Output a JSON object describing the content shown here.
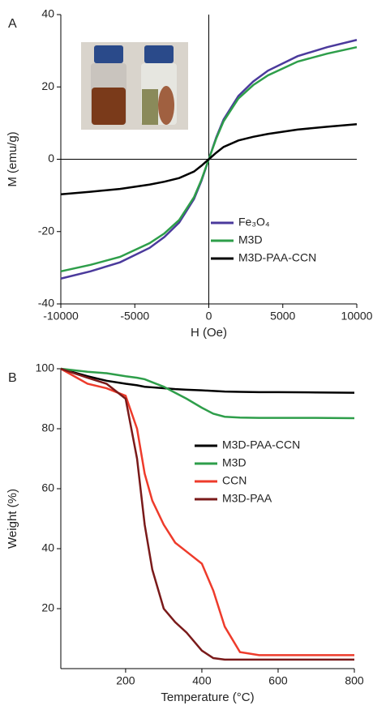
{
  "chart_data": [
    {
      "type": "line",
      "label": "A",
      "xlabel": "H (Oe)",
      "ylabel": "M (emu/g)",
      "x": [
        -10000,
        -8000,
        -6000,
        -4000,
        -3000,
        -2000,
        -1000,
        -500,
        0,
        500,
        1000,
        2000,
        3000,
        4000,
        6000,
        8000,
        10000
      ],
      "series": [
        {
          "name": "Fe₃O₄",
          "color": "#4b3a9c",
          "values": [
            -33,
            -31,
            -28.5,
            -24.5,
            -21.5,
            -17.5,
            -11,
            -6,
            0,
            6,
            11,
            17.5,
            21.5,
            24.5,
            28.5,
            31,
            33
          ]
        },
        {
          "name": "M3D",
          "color": "#2e9e4a",
          "values": [
            -31,
            -29.2,
            -27,
            -23.2,
            -20.5,
            -16.8,
            -10.5,
            -5.7,
            0,
            5.7,
            10.5,
            16.8,
            20.5,
            23.2,
            27,
            29.2,
            31
          ]
        },
        {
          "name": "M3D-PAA-CCN",
          "color": "#000000",
          "values": [
            -9.7,
            -9,
            -8.2,
            -7,
            -6.2,
            -5.2,
            -3.4,
            -1.8,
            0,
            1.8,
            3.4,
            5.2,
            6.2,
            7,
            8.2,
            9,
            9.7
          ]
        }
      ],
      "xlim": [
        -10000,
        10000
      ],
      "xticks": [
        -10000,
        -5000,
        0,
        5000,
        10000
      ],
      "ylim": [
        -40,
        40
      ],
      "yticks": [
        -40,
        -20,
        0,
        20,
        40
      ],
      "zero_lines": true,
      "legend": "lower-right"
    },
    {
      "type": "line",
      "label": "B",
      "xlabel": "Temperature (°C)",
      "ylabel": "Weight (%)",
      "x": [
        30,
        100,
        150,
        200,
        230,
        250,
        270,
        300,
        330,
        360,
        400,
        430,
        460,
        500,
        550,
        600,
        700,
        800
      ],
      "series": [
        {
          "name": "M3D-PAA-CCN",
          "color": "#000000",
          "values": [
            100,
            97.5,
            96,
            95,
            94.5,
            94,
            93.8,
            93.5,
            93.2,
            93,
            92.8,
            92.6,
            92.4,
            92.3,
            92.2,
            92.2,
            92.1,
            92
          ]
        },
        {
          "name": "M3D",
          "color": "#2e9e4a",
          "values": [
            100,
            99,
            98.5,
            97.5,
            97,
            96.5,
            95.5,
            94,
            92,
            90,
            87,
            85,
            84,
            83.7,
            83.6,
            83.6,
            83.6,
            83.5
          ]
        },
        {
          "name": "CCN",
          "color": "#ee3b2b",
          "values": [
            100,
            95,
            93.5,
            91,
            80,
            65,
            56,
            48,
            42,
            39,
            35,
            26,
            14,
            5.5,
            4.5,
            4.5,
            4.5,
            4.5
          ]
        },
        {
          "name": "M3D-PAA",
          "color": "#7a1a1a",
          "values": [
            100,
            97,
            95,
            90,
            70,
            48,
            33,
            20,
            15.5,
            12,
            6,
            3.5,
            3,
            3,
            3,
            3,
            3,
            3
          ]
        }
      ],
      "xlim": [
        30,
        800
      ],
      "xticks": [
        200,
        400,
        600,
        800
      ],
      "ylim": [
        0,
        100
      ],
      "yticks": [
        20,
        40,
        60,
        80,
        100
      ],
      "zero_lines": false,
      "legend": "center"
    }
  ]
}
